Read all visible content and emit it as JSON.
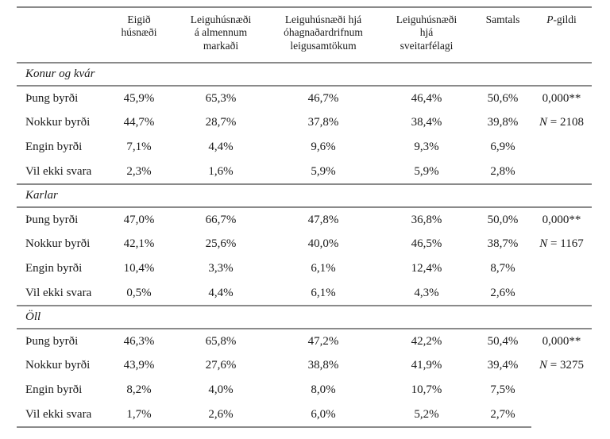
{
  "table": {
    "headers": {
      "col2": "Eigið\nhúsnæði",
      "col3": "Leiguhúsnæði\ná almennum\nmarkaði",
      "col4": "Leiguhúsnæði hjá\nóhagnaðardrifnum\nleigusamtökum",
      "col5": "Leiguhúsnæði\nhjá\nsveitarfélagi",
      "col6": "Samtals",
      "col7_italic": "P",
      "col7_rest": "-gildi"
    },
    "sections": [
      {
        "title": "Konur og kvár",
        "p_value": "0,000**",
        "n_prefix": "N",
        "n_rest": " = 2108",
        "rows": [
          {
            "label": "Þung byrði",
            "values": [
              "45,9%",
              "65,3%",
              "46,7%",
              "46,4%",
              "50,6%"
            ]
          },
          {
            "label": "Nokkur byrði",
            "values": [
              "44,7%",
              "28,7%",
              "37,8%",
              "38,4%",
              "39,8%"
            ]
          },
          {
            "label": "Engin byrði",
            "values": [
              "7,1%",
              "4,4%",
              "9,6%",
              "9,3%",
              "6,9%"
            ]
          },
          {
            "label": "Vil ekki svara",
            "values": [
              "2,3%",
              "1,6%",
              "5,9%",
              "5,9%",
              "2,8%"
            ]
          }
        ]
      },
      {
        "title": "Karlar",
        "p_value": "0,000**",
        "n_prefix": "N",
        "n_rest": " = 1167",
        "rows": [
          {
            "label": "Þung byrði",
            "values": [
              "47,0%",
              "66,7%",
              "47,8%",
              "36,8%",
              "50,0%"
            ]
          },
          {
            "label": "Nokkur byrði",
            "values": [
              "42,1%",
              "25,6%",
              "40,0%",
              "46,5%",
              "38,7%"
            ]
          },
          {
            "label": "Engin byrði",
            "values": [
              "10,4%",
              "3,3%",
              "6,1%",
              "12,4%",
              "8,7%"
            ]
          },
          {
            "label": "Vil ekki svara",
            "values": [
              "0,5%",
              "4,4%",
              "6,1%",
              "4,3%",
              "2,6%"
            ]
          }
        ]
      },
      {
        "title": "Öll",
        "p_value": "0,000**",
        "n_prefix": "N",
        "n_rest": " = 3275",
        "rows": [
          {
            "label": "Þung byrði",
            "values": [
              "46,3%",
              "65,8%",
              "47,2%",
              "42,2%",
              "50,4%"
            ]
          },
          {
            "label": "Nokkur byrði",
            "values": [
              "43,9%",
              "27,6%",
              "38,8%",
              "41,9%",
              "39,4%"
            ]
          },
          {
            "label": "Engin byrði",
            "values": [
              "8,2%",
              "4,0%",
              "8,0%",
              "10,7%",
              "7,5%"
            ]
          },
          {
            "label": "Vil ekki svara",
            "values": [
              "1,7%",
              "2,6%",
              "6,0%",
              "5,2%",
              "2,7%"
            ]
          }
        ]
      }
    ],
    "line_color": "#8a8a8a"
  }
}
